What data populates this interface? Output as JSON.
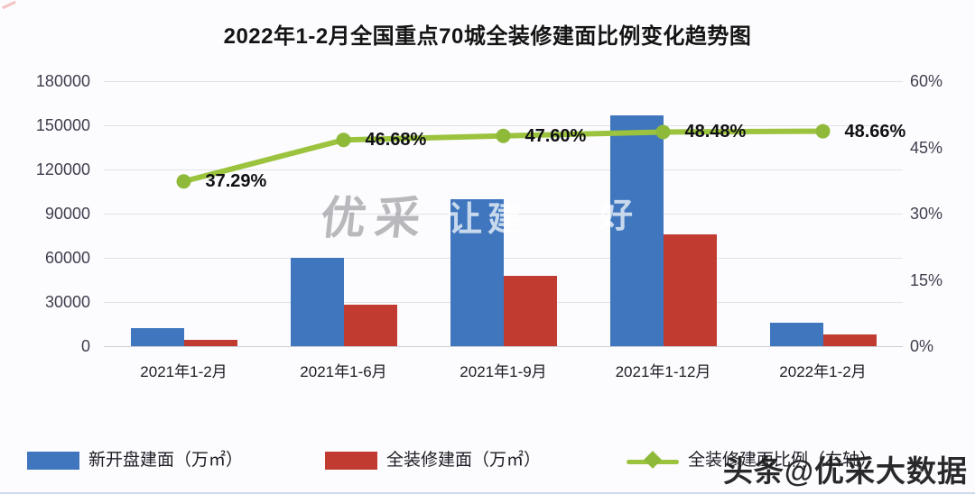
{
  "title": "2022年1-2月全国重点70城全装修建面比例变化趋势图",
  "colors": {
    "bar_blue": "#3f76be",
    "bar_red": "#c23b31",
    "line_green": "#9bc33d",
    "marker_green": "#8fb939",
    "grid": "#dfe2e8",
    "axis_text": "#3f3f4f"
  },
  "chart_data": {
    "type": "bar",
    "subtype": "grouped bars with overlaid line on secondary axis",
    "title": "2022年1-2月全国重点70城全装修建面比例变化趋势图",
    "categories": [
      "2021年1-2月",
      "2021年1-6月",
      "2021年1-9月",
      "2021年1-12月",
      "2022年1-2月"
    ],
    "series": [
      {
        "name": "新开盘建面（万㎡）",
        "type": "bar",
        "axis": "left",
        "values": [
          12000,
          60000,
          100000,
          156500,
          16000
        ]
      },
      {
        "name": "全装修建面（万㎡）",
        "type": "bar",
        "axis": "left",
        "values": [
          4500,
          28000,
          47500,
          75800,
          7800
        ]
      },
      {
        "name": "全装修建面比例（右轴）",
        "type": "line",
        "axis": "right",
        "values": [
          37.29,
          46.68,
          47.6,
          48.48,
          48.66
        ],
        "point_labels": [
          "37.29%",
          "46.68%",
          "47.60%",
          "48.48%",
          "48.66%"
        ]
      }
    ],
    "left_axis": {
      "min": 0,
      "max": 180000,
      "step": 30000,
      "tick_labels": [
        "180000",
        "150000",
        "120000",
        "90000",
        "60000",
        "30000",
        "0"
      ]
    },
    "right_axis": {
      "min": 0,
      "max": 60,
      "step": 15,
      "tick_labels": [
        "60%",
        "45%",
        "30%",
        "15%",
        "0%"
      ]
    },
    "grid": true,
    "legend_position": "bottom"
  },
  "legend": {
    "items": [
      {
        "label": "新开盘建面（万㎡）",
        "marker": "blue-square"
      },
      {
        "label": "全装修建面（万㎡）",
        "marker": "red-square"
      },
      {
        "label": "全装修建面比例（右轴）",
        "marker": "green-line-diamond"
      }
    ]
  },
  "watermarks": {
    "center_logo": "优采",
    "fragment_left": "让建",
    "fragment_right": "好",
    "corner": "头条@优采大数据"
  }
}
